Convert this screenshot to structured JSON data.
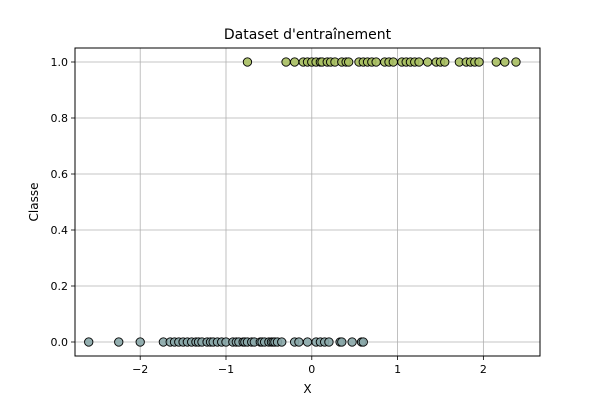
{
  "chart_data": {
    "type": "scatter",
    "title": "Dataset d'entraînement",
    "xlabel": "X",
    "ylabel": "Classe",
    "xlim": [
      -2.76,
      2.66
    ],
    "ylim": [
      -0.05,
      1.05
    ],
    "xticks": [
      -2,
      -1,
      0,
      1,
      2
    ],
    "xtick_labels": [
      "−2",
      "−1",
      "0",
      "1",
      "2"
    ],
    "yticks": [
      0.0,
      0.2,
      0.4,
      0.6,
      0.8,
      1.0
    ],
    "ytick_labels": [
      "0.0",
      "0.2",
      "0.4",
      "0.6",
      "0.8",
      "1.0"
    ],
    "grid": true,
    "series": [
      {
        "color": "#8aa7a8",
        "points": [
          [
            -2.6,
            0
          ],
          [
            -2.25,
            0
          ],
          [
            -2.0,
            0
          ],
          [
            -1.73,
            0
          ],
          [
            -1.65,
            0
          ],
          [
            -1.6,
            0
          ],
          [
            -1.55,
            0
          ],
          [
            -1.5,
            0
          ],
          [
            -1.45,
            0
          ],
          [
            -1.4,
            0
          ],
          [
            -1.35,
            0
          ],
          [
            -1.32,
            0
          ],
          [
            -1.28,
            0
          ],
          [
            -1.22,
            0
          ],
          [
            -1.18,
            0
          ],
          [
            -1.15,
            0
          ],
          [
            -1.1,
            0
          ],
          [
            -1.05,
            0
          ],
          [
            -1.0,
            0
          ],
          [
            -0.92,
            0
          ],
          [
            -0.88,
            0
          ],
          [
            -0.85,
            0
          ],
          [
            -0.8,
            0
          ],
          [
            -0.78,
            0
          ],
          [
            -0.75,
            0
          ],
          [
            -0.7,
            0
          ],
          [
            -0.67,
            0
          ],
          [
            -0.6,
            0
          ],
          [
            -0.58,
            0
          ],
          [
            -0.55,
            0
          ],
          [
            -0.5,
            0
          ],
          [
            -0.47,
            0
          ],
          [
            -0.45,
            0
          ],
          [
            -0.43,
            0
          ],
          [
            -0.4,
            0
          ],
          [
            -0.35,
            0
          ],
          [
            -0.2,
            0
          ],
          [
            -0.15,
            0
          ],
          [
            -0.05,
            0
          ],
          [
            0.05,
            0
          ],
          [
            0.1,
            0
          ],
          [
            0.15,
            0
          ],
          [
            0.2,
            0
          ],
          [
            0.33,
            0
          ],
          [
            0.35,
            0
          ],
          [
            0.47,
            0
          ],
          [
            0.58,
            0
          ],
          [
            0.6,
            0
          ]
        ]
      },
      {
        "color": "#a8bf62",
        "points": [
          [
            -0.75,
            1
          ],
          [
            -0.3,
            1
          ],
          [
            -0.2,
            1
          ],
          [
            -0.1,
            1
          ],
          [
            -0.05,
            1
          ],
          [
            0.0,
            1
          ],
          [
            0.05,
            1
          ],
          [
            0.1,
            1
          ],
          [
            0.12,
            1
          ],
          [
            0.18,
            1
          ],
          [
            0.22,
            1
          ],
          [
            0.27,
            1
          ],
          [
            0.35,
            1
          ],
          [
            0.4,
            1
          ],
          [
            0.43,
            1
          ],
          [
            0.55,
            1
          ],
          [
            0.6,
            1
          ],
          [
            0.65,
            1
          ],
          [
            0.7,
            1
          ],
          [
            0.75,
            1
          ],
          [
            0.85,
            1
          ],
          [
            0.9,
            1
          ],
          [
            0.95,
            1
          ],
          [
            1.05,
            1
          ],
          [
            1.1,
            1
          ],
          [
            1.15,
            1
          ],
          [
            1.2,
            1
          ],
          [
            1.25,
            1
          ],
          [
            1.35,
            1
          ],
          [
            1.45,
            1
          ],
          [
            1.5,
            1
          ],
          [
            1.55,
            1
          ],
          [
            1.72,
            1
          ],
          [
            1.8,
            1
          ],
          [
            1.85,
            1
          ],
          [
            1.9,
            1
          ],
          [
            1.95,
            1
          ],
          [
            2.15,
            1
          ],
          [
            2.25,
            1
          ],
          [
            2.38,
            1
          ]
        ]
      }
    ]
  }
}
